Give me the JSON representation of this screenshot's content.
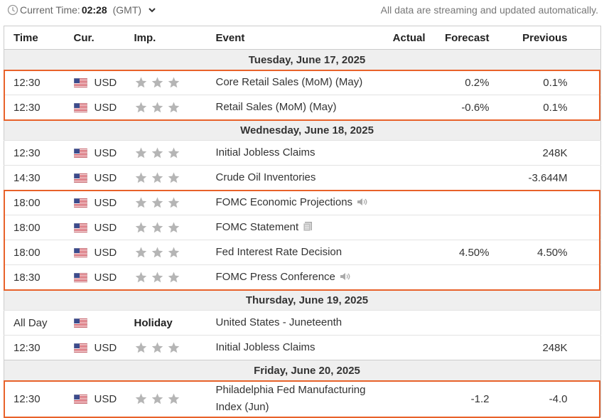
{
  "header": {
    "label": "Current Time:",
    "time": "02:28",
    "zone": "(GMT)",
    "notice": "All data are streaming and updated automatically."
  },
  "table": {
    "columns": [
      "Time",
      "Cur.",
      "Imp.",
      "Event",
      "Actual",
      "Forecast",
      "Previous"
    ],
    "groups": [
      {
        "date": "Tuesday, June 17, 2025",
        "rows": [
          {
            "time": "12:30",
            "currency": "USD",
            "event": "Core Retail Sales (MoM) (May)",
            "forecast": "0.2%",
            "previous": "0.1%"
          },
          {
            "time": "12:30",
            "currency": "USD",
            "event": "Retail Sales (MoM) (May)",
            "forecast": "-0.6%",
            "previous": "0.1%"
          }
        ]
      },
      {
        "date": "Wednesday, June 18, 2025",
        "rows": [
          {
            "time": "12:30",
            "currency": "USD",
            "event": "Initial Jobless Claims",
            "previous": "248K"
          },
          {
            "time": "14:30",
            "currency": "USD",
            "event": "Crude Oil Inventories",
            "previous": "-3.644M"
          },
          {
            "time": "18:00",
            "currency": "USD",
            "event": "FOMC Economic Projections"
          },
          {
            "time": "18:00",
            "currency": "USD",
            "event": "FOMC Statement"
          },
          {
            "time": "18:00",
            "currency": "USD",
            "event": "Fed Interest Rate Decision",
            "forecast": "4.50%",
            "previous": "4.50%"
          },
          {
            "time": "18:30",
            "currency": "USD",
            "event": "FOMC Press Conference"
          }
        ]
      },
      {
        "date": "Thursday, June 19, 2025",
        "rows": [
          {
            "time": "All Day",
            "importance": "Holiday",
            "event": "United States - Juneteenth"
          },
          {
            "time": "12:30",
            "currency": "USD",
            "event": "Initial Jobless Claims",
            "previous": "248K"
          }
        ]
      },
      {
        "date": "Friday, June 20, 2025",
        "rows": [
          {
            "time": "12:30",
            "currency": "USD",
            "event": "Philadelphia Fed Manufacturing Index (Jun)",
            "forecast": "-1.2",
            "previous": "-4.0"
          }
        ]
      }
    ]
  }
}
